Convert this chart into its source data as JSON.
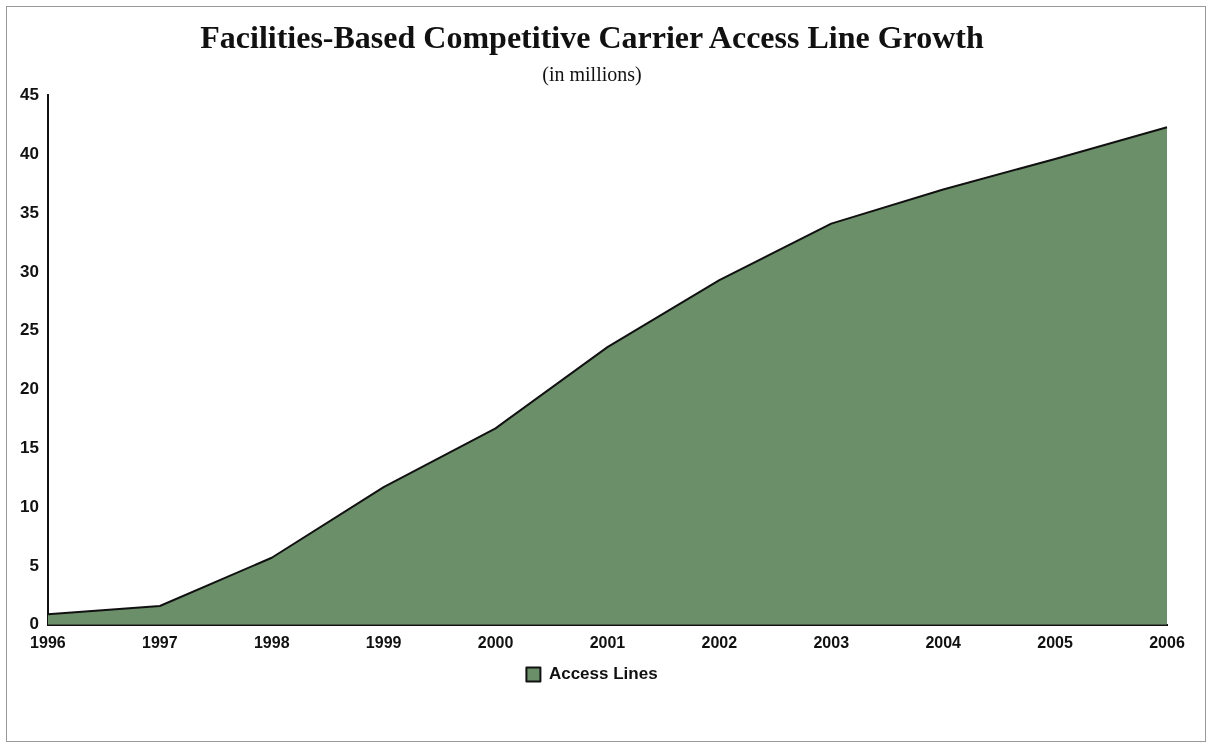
{
  "chart_data": {
    "type": "area",
    "title": "Facilities-Based Competitive Carrier Access Line Growth",
    "subtitle": "(in millions)",
    "categories": [
      "1996",
      "1997",
      "1998",
      "1999",
      "2000",
      "2001",
      "2002",
      "2003",
      "2004",
      "2005",
      "2006"
    ],
    "series": [
      {
        "name": "Access Lines",
        "color": "#6b8f69",
        "values": [
          0.9,
          1.6,
          5.7,
          11.7,
          16.7,
          23.6,
          29.3,
          34.1,
          37.0,
          39.6,
          42.3
        ]
      }
    ],
    "ylim": [
      0,
      45
    ],
    "yticks": [
      0,
      5,
      10,
      15,
      20,
      25,
      30,
      35,
      40,
      45
    ],
    "grid": false,
    "legend": "bottom"
  }
}
